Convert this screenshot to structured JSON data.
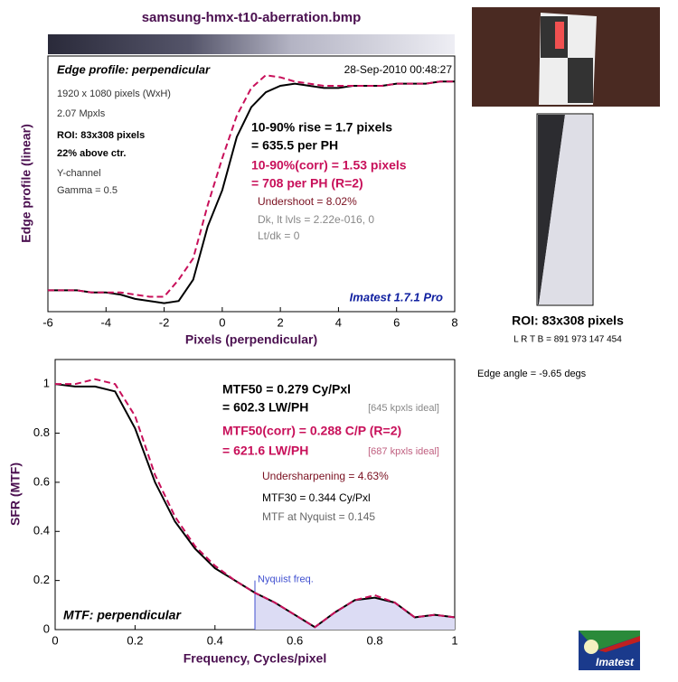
{
  "chart_data": [
    {
      "type": "line",
      "title": "samsung-hmx-t10-aberration.bmp",
      "x_label": "Pixels (perpendicular)",
      "y_label": "Edge profile (linear)",
      "x": [
        -6,
        -5.5,
        -5,
        -4.5,
        -4,
        -3.5,
        -3,
        -2.5,
        -2,
        -1.5,
        -1,
        -0.5,
        0,
        0.5,
        1,
        1.5,
        2,
        2.5,
        3,
        3.5,
        4,
        4.5,
        5,
        5.5,
        6,
        6.5,
        7,
        7.5,
        8
      ],
      "series": [
        {
          "name": "Edge profile",
          "color": "#000000",
          "values": [
            0,
            0,
            0,
            -0.01,
            -0.01,
            -0.02,
            -0.04,
            -0.05,
            -0.06,
            -0.05,
            0.05,
            0.3,
            0.47,
            0.72,
            0.86,
            0.93,
            0.96,
            0.97,
            0.96,
            0.95,
            0.95,
            0.96,
            0.96,
            0.96,
            0.97,
            0.97,
            0.97,
            0.98,
            0.98
          ]
        },
        {
          "name": "Edge profile (corr)",
          "color": "#c8105a",
          "values": [
            0,
            0,
            0,
            -0.01,
            -0.01,
            -0.01,
            -0.02,
            -0.03,
            -0.03,
            0.05,
            0.15,
            0.4,
            0.62,
            0.82,
            0.95,
            1.01,
            1.0,
            0.98,
            0.97,
            0.96,
            0.96,
            0.96,
            0.96,
            0.96,
            0.97,
            0.97,
            0.97,
            0.98,
            0.98
          ]
        }
      ],
      "xlim": [
        -6,
        8
      ],
      "xticks": [
        -6,
        -4,
        -2,
        0,
        2,
        4,
        6,
        8
      ],
      "ylim": [
        -0.1,
        1.1
      ],
      "grid": false,
      "annotations": [
        "Edge profile: perpendicular",
        "28-Sep-2010 00:48:27",
        "1920 x 1080 pixels (WxH)",
        "2.07 Mpxls",
        "ROI: 83x308 pixels",
        "22% above ctr.",
        "Y-channel",
        "Gamma = 0.5",
        "10-90% rise = 1.7 pixels",
        "= 635.5 per PH",
        "10-90%(corr) = 1.53 pixels",
        "= 708 per PH  (R=2)",
        "Undershoot = 8.02%",
        "Dk, lt lvls = 2.22e-016, 0",
        "Lt/dk = 0",
        "Imatest 1.7.1 Pro"
      ]
    },
    {
      "type": "line",
      "x_label": "Frequency, Cycles/pixel",
      "y_label": "SFR (MTF)",
      "x": [
        0,
        0.05,
        0.1,
        0.15,
        0.2,
        0.25,
        0.3,
        0.35,
        0.4,
        0.45,
        0.5,
        0.55,
        0.6,
        0.65,
        0.7,
        0.75,
        0.8,
        0.85,
        0.9,
        0.95,
        1
      ],
      "series": [
        {
          "name": "MTF",
          "color": "#000000",
          "values": [
            1.0,
            0.99,
            0.99,
            0.97,
            0.82,
            0.6,
            0.44,
            0.33,
            0.25,
            0.2,
            0.15,
            0.11,
            0.06,
            0.01,
            0.07,
            0.12,
            0.13,
            0.11,
            0.05,
            0.06,
            0.05
          ]
        },
        {
          "name": "MTF (corr)",
          "color": "#c8105a",
          "values": [
            1.0,
            1.0,
            1.02,
            1.0,
            0.87,
            0.63,
            0.46,
            0.34,
            0.26,
            0.2,
            0.15,
            0.11,
            0.06,
            0.01,
            0.07,
            0.12,
            0.14,
            0.11,
            0.05,
            0.06,
            0.05
          ]
        }
      ],
      "xlim": [
        0,
        1
      ],
      "xticks": [
        0,
        0.2,
        0.4,
        0.6,
        0.8,
        1
      ],
      "ylim": [
        0,
        1.1
      ],
      "yticks": [
        0,
        0.2,
        0.4,
        0.6,
        0.8,
        1
      ],
      "grid": false,
      "nyquist": {
        "value": 0.5,
        "label": "Nyquist freq."
      },
      "annotations": [
        "MTF50 = 0.279 Cy/Pxl",
        "= 602.3 LW/PH",
        "[645 kpxls ideal]",
        "MTF50(corr) = 0.288 C/P  (R=2)",
        "= 621.6 LW/PH",
        "[687 kpxls ideal]",
        "Undersharpening = 4.63%",
        "MTF30 = 0.344 Cy/Pxl",
        "MTF at Nyquist = 0.145",
        "MTF: perpendicular"
      ]
    }
  ],
  "side_panel": {
    "roi_label": "ROI: 83x308 pixels",
    "roi_coords": "L R  T B = 891 973  147 454",
    "edge_angle": "Edge angle = -9.65 degs",
    "logo": "Imatest"
  }
}
